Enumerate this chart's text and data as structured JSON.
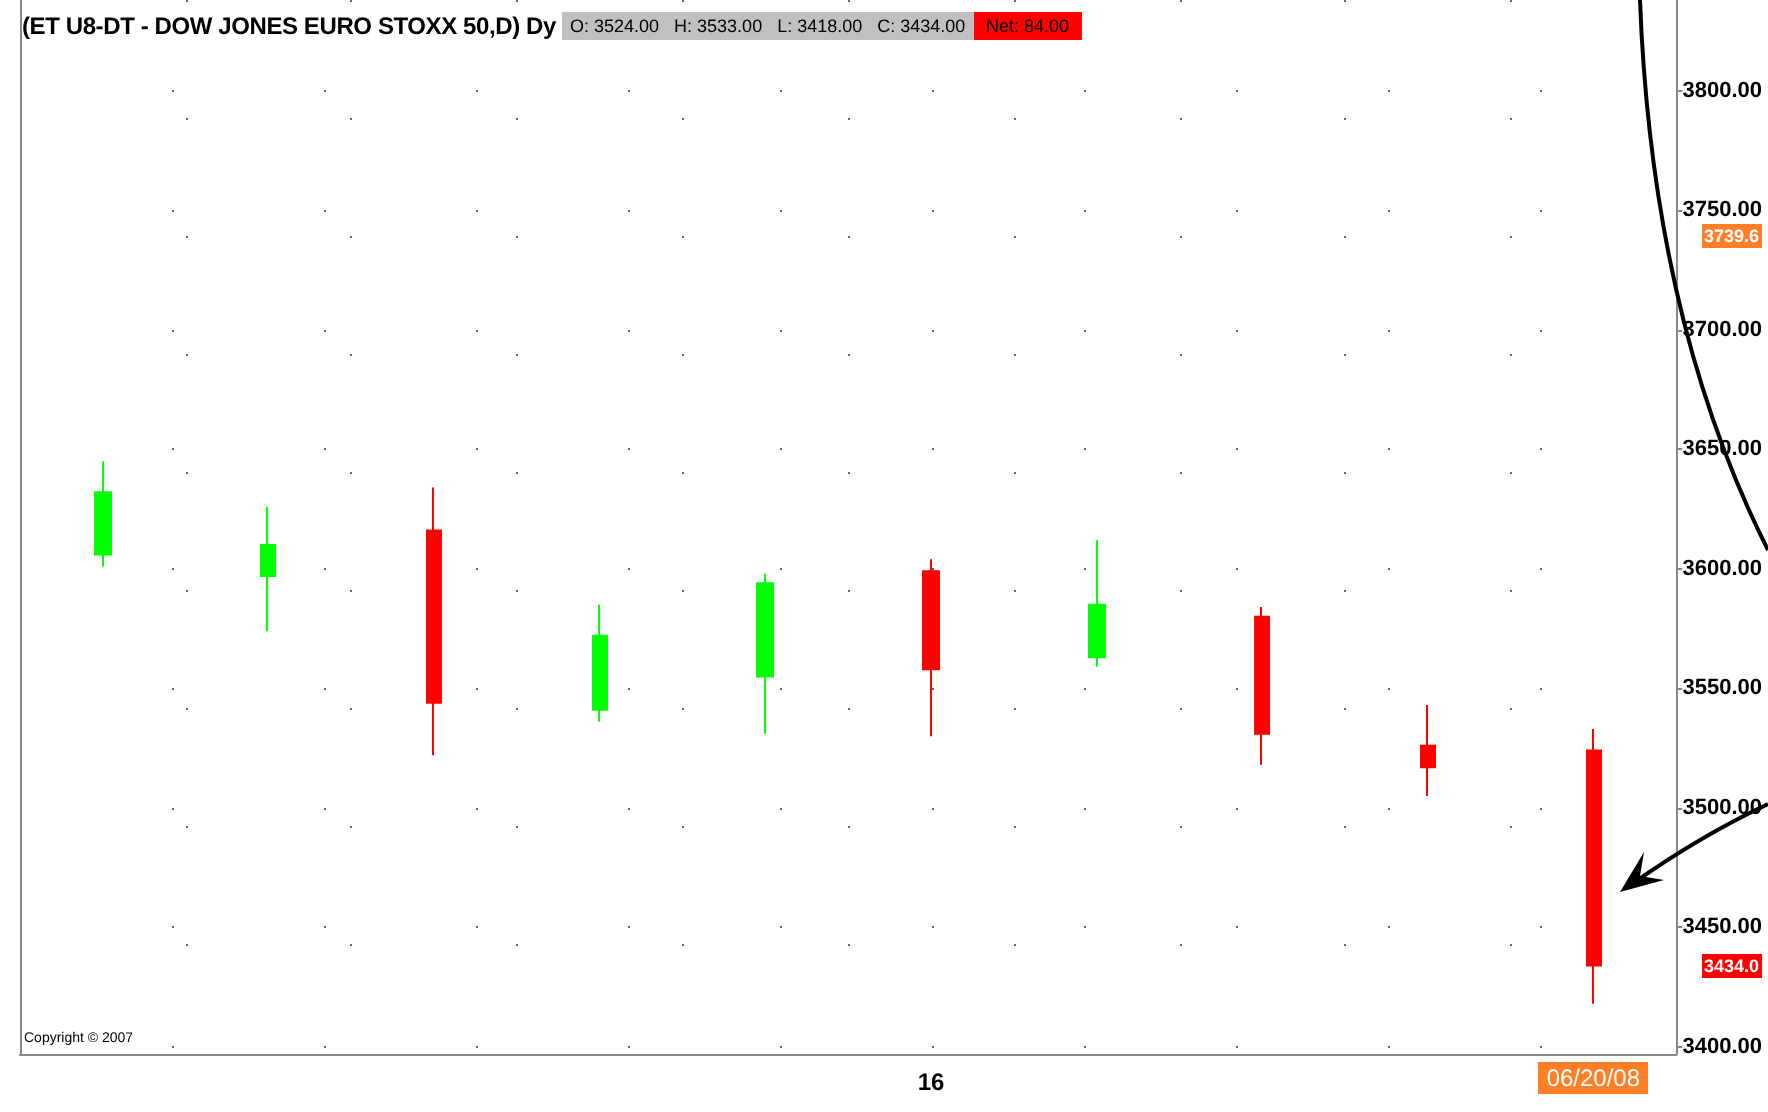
{
  "chart_data": {
    "type": "candlestick",
    "title": "(ET U8-DT - DOW JONES EURO STOXX 50,D) Dy",
    "subtitle": "O: 3524.00   H: 3533.00   L: 3418.00   C: 3434.00",
    "annotations": [
      "Net: 84.00",
      "Copyright © 2007",
      "3739.6",
      "3434.0"
    ],
    "categories": [
      null,
      null,
      null,
      null,
      null,
      "16",
      null,
      null,
      null,
      "06/20/08"
    ],
    "ohlc": [
      [
        3606,
        3645,
        3601,
        3632
      ],
      [
        3597,
        3626,
        3574,
        3610
      ],
      [
        3616,
        3634,
        3522,
        3544
      ],
      [
        3541,
        3585,
        3536,
        3572
      ],
      [
        3555,
        3598,
        3531,
        3594
      ],
      [
        3599,
        3604,
        3530,
        3558
      ],
      [
        3563,
        3612,
        3559,
        3585
      ],
      [
        3580,
        3584,
        3518,
        3531
      ],
      [
        3526,
        3543,
        3505,
        3517
      ],
      [
        3524,
        3533,
        3418,
        3434
      ]
    ],
    "colors": [
      "#00ff00",
      "#00ff00",
      "#ff0000",
      "#00ff00",
      "#00ff00",
      "#ff0000",
      "#00ff00",
      "#ff0000",
      "#ff0000",
      "#ff0000"
    ],
    "ylim": [
      3397,
      3838
    ],
    "yticks": [
      {
        "value": 3400,
        "label": "3400.00"
      },
      {
        "value": 3450,
        "label": "3450.00"
      },
      {
        "value": 3500,
        "label": "3500.00"
      },
      {
        "value": 3550,
        "label": "3550.00"
      },
      {
        "value": 3600,
        "label": "3600.00"
      },
      {
        "value": 3650,
        "label": "3650.00"
      },
      {
        "value": 3700,
        "label": "3700.00"
      },
      {
        "value": 3750,
        "label": "3750.00"
      },
      {
        "value": 3800,
        "label": "3800.00"
      }
    ],
    "grid": true
  }
}
